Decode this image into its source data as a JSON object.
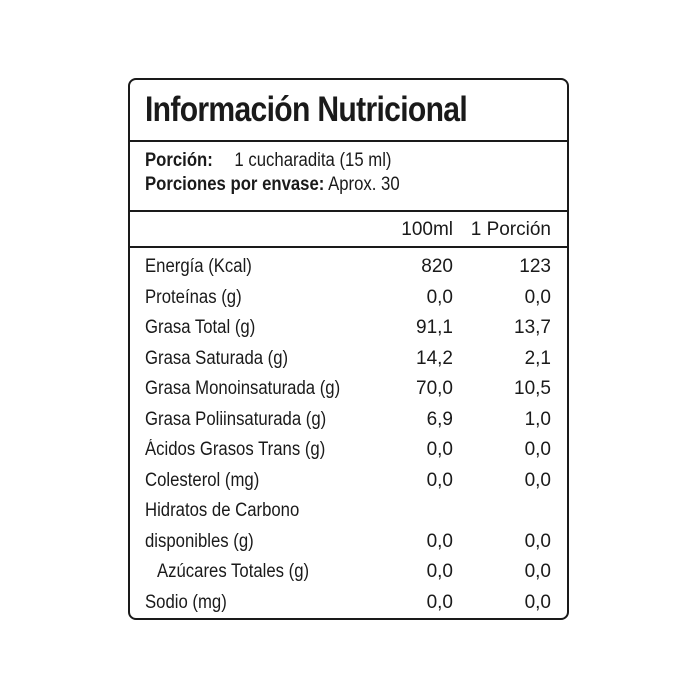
{
  "title": "Información Nutricional",
  "serving": {
    "portion_label": "Porción:",
    "portion_value": "1 cucharadita (15 ml)",
    "per_container_label": "Porciones por envase:",
    "per_container_value": "Aprox. 30"
  },
  "columns": {
    "col1": "100ml",
    "col2": "1 Porción"
  },
  "nutrients": [
    {
      "name": "Energía (Kcal)",
      "v100": "820",
      "portion": "123"
    },
    {
      "name": "Proteínas (g)",
      "v100": "0,0",
      "portion": "0,0"
    },
    {
      "name": "Grasa Total (g)",
      "v100": "91,1",
      "portion": "13,7"
    },
    {
      "name": "Grasa Saturada (g)",
      "v100": "14,2",
      "portion": "2,1"
    },
    {
      "name": "Grasa Monoinsaturada (g)",
      "v100": "70,0",
      "portion": "10,5"
    },
    {
      "name": "Grasa Poliinsaturada (g)",
      "v100": "6,9",
      "portion": "1,0"
    },
    {
      "name": "Ácidos Grasos Trans (g)",
      "v100": "0,0",
      "portion": "0,0"
    },
    {
      "name": "Colesterol (mg)",
      "v100": "0,0",
      "portion": "0,0"
    },
    {
      "name": "Hidratos de Carbono",
      "v100": "",
      "portion": ""
    },
    {
      "name": "disponibles (g)",
      "v100": "0,0",
      "portion": "0,0"
    },
    {
      "name": "Azúcares Totales (g)",
      "v100": "0,0",
      "portion": "0,0",
      "indent": true
    },
    {
      "name": "Sodio (mg)",
      "v100": "0,0",
      "portion": "0,0"
    }
  ]
}
